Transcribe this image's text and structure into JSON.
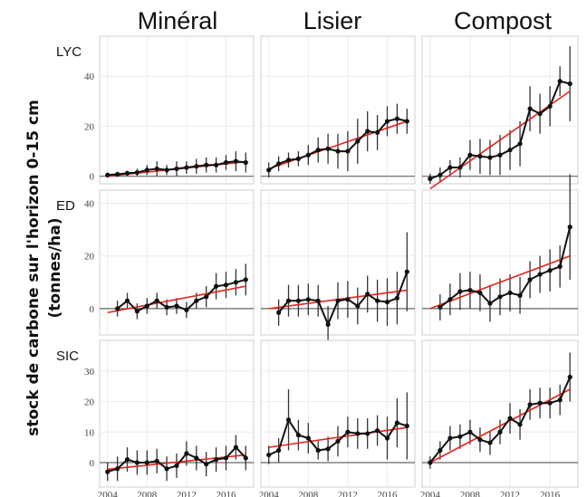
{
  "figure": {
    "column_titles": [
      "Minéral",
      "Lisier",
      "Compost"
    ],
    "y_axis_label_line1": "stock de carbone sur l'horizon 0-15 cm",
    "y_axis_label_line2": "(tonnes/ha)",
    "row_labels": [
      "LYC",
      "ED",
      "SIC"
    ]
  },
  "colors": {
    "series": "#111111",
    "trend": "#e8221b",
    "zero_line": "#666666",
    "panel_border": "#cfcfcf",
    "grid": "#ececec"
  },
  "chart_data": {
    "type": "line",
    "x_ticks": [
      2004,
      2008,
      2012,
      2016
    ],
    "xlim": [
      2003.2,
      2018.8
    ],
    "rows": [
      {
        "label": "LYC",
        "ylim": [
          -3,
          56
        ],
        "y_ticks": [
          0,
          20,
          40
        ],
        "panels": [
          {
            "column": "Minéral",
            "x": [
              2004,
              2005,
              2006,
              2007,
              2008,
              2009,
              2010,
              2011,
              2012,
              2013,
              2014,
              2015,
              2016,
              2017,
              2018
            ],
            "y": [
              0.5,
              0.8,
              1.2,
              1.5,
              2.5,
              3,
              2.5,
              3,
              3.5,
              4,
              4.5,
              4.5,
              5.5,
              6,
              5.5
            ],
            "err": [
              1,
              1,
              1,
              1.5,
              2,
              3,
              2,
              3,
              2.5,
              3,
              3,
              3,
              3,
              4,
              4
            ],
            "trend": [
              0,
              5.8
            ]
          },
          {
            "column": "Lisier",
            "x": [
              2004,
              2005,
              2006,
              2007,
              2008,
              2009,
              2010,
              2011,
              2012,
              2013,
              2014,
              2015,
              2016,
              2017,
              2018
            ],
            "y": [
              2.5,
              5,
              6.5,
              7,
              8.5,
              10.5,
              11,
              10,
              10,
              14,
              18,
              17.5,
              22,
              23,
              22
            ],
            "err": [
              3,
              3,
              3,
              3,
              4,
              5,
              6,
              7,
              8,
              9,
              8,
              7,
              6,
              6,
              5
            ],
            "trend": [
              3,
              22
            ]
          },
          {
            "column": "Compost",
            "x": [
              2004,
              2005,
              2006,
              2007,
              2008,
              2009,
              2010,
              2011,
              2012,
              2013,
              2014,
              2015,
              2016,
              2017,
              2018
            ],
            "y": [
              -1,
              0.5,
              3.5,
              3.5,
              8.5,
              8,
              7.5,
              8.5,
              10.5,
              13,
              27,
              25,
              28,
              38,
              37
            ],
            "err": [
              2,
              3,
              3,
              4,
              6,
              7,
              7,
              8,
              8,
              9,
              9,
              8,
              8,
              6,
              15
            ],
            "trend": [
              -5,
              34
            ]
          }
        ]
      },
      {
        "label": "ED",
        "ylim": [
          -10,
          45
        ],
        "y_ticks": [
          0,
          20,
          40
        ],
        "panels": [
          {
            "column": "Minéral",
            "x": [
              2005,
              2006,
              2007,
              2008,
              2009,
              2010,
              2011,
              2012,
              2013,
              2014,
              2015,
              2016,
              2017,
              2018
            ],
            "y": [
              0,
              3,
              -1,
              1,
              3,
              0.5,
              1,
              -0.5,
              3,
              4.5,
              8.5,
              9,
              10,
              11
            ],
            "err": [
              3,
              3,
              3,
              3,
              3,
              3,
              3,
              3,
              3,
              4,
              5,
              5,
              5,
              6
            ],
            "trend": [
              -1.5,
              8.5
            ]
          },
          {
            "column": "Lisier",
            "x": [
              2005,
              2006,
              2007,
              2008,
              2009,
              2010,
              2011,
              2012,
              2013,
              2014,
              2015,
              2016,
              2017,
              2018
            ],
            "y": [
              -1.5,
              3,
              3,
              3.5,
              3,
              -6,
              3,
              3.5,
              1,
              5.5,
              3,
              2.5,
              4,
              14
            ],
            "err": [
              5,
              6,
              6,
              6,
              6,
              7,
              7,
              7,
              7,
              7,
              8,
              9,
              10,
              15
            ],
            "trend": [
              0,
              7
            ]
          },
          {
            "column": "Compost",
            "x": [
              2005,
              2006,
              2007,
              2008,
              2009,
              2010,
              2011,
              2012,
              2013,
              2014,
              2015,
              2016,
              2017,
              2018
            ],
            "y": [
              0.5,
              3.5,
              6.5,
              7,
              6,
              2,
              4.5,
              6,
              5,
              11,
              13,
              14.5,
              16,
              31
            ],
            "err": [
              5,
              6,
              7,
              7,
              7,
              7,
              7,
              7,
              7,
              7,
              7,
              8,
              8,
              20
            ],
            "trend": [
              0,
              20
            ]
          }
        ]
      },
      {
        "label": "SIC",
        "ylim": [
          -8,
          40
        ],
        "y_ticks": [
          0,
          10,
          20,
          30
        ],
        "panels": [
          {
            "column": "Minéral",
            "x": [
              2004,
              2005,
              2006,
              2007,
              2008,
              2009,
              2010,
              2011,
              2012,
              2013,
              2014,
              2015,
              2016,
              2017,
              2018
            ],
            "y": [
              -3,
              -2,
              1,
              0,
              0,
              0.5,
              -2,
              -1,
              3,
              1.5,
              -0.5,
              1,
              1.5,
              5,
              1.5
            ],
            "err": [
              3,
              4,
              4,
              4,
              4,
              4,
              4,
              4,
              4,
              4,
              4,
              4,
              4,
              4,
              4
            ],
            "trend": [
              -2.2,
              2.5
            ]
          },
          {
            "column": "Lisier",
            "x": [
              2004,
              2005,
              2006,
              2007,
              2008,
              2009,
              2010,
              2011,
              2012,
              2013,
              2014,
              2015,
              2016,
              2017,
              2018
            ],
            "y": [
              2.5,
              4,
              14,
              9,
              8,
              4,
              4.5,
              7,
              10,
              9.5,
              9.5,
              10.5,
              8,
              13,
              12
            ],
            "err": [
              3,
              4,
              10,
              5,
              5,
              3,
              4,
              5,
              5,
              5,
              5,
              5,
              7,
              8,
              11
            ],
            "trend": [
              5,
              11.5
            ]
          },
          {
            "column": "Compost",
            "x": [
              2004,
              2005,
              2006,
              2007,
              2008,
              2009,
              2010,
              2011,
              2012,
              2013,
              2014,
              2015,
              2016,
              2017,
              2018
            ],
            "y": [
              0,
              4,
              8,
              8.5,
              10,
              7.5,
              6.5,
              10,
              14.5,
              12.5,
              19,
              19.5,
              19.5,
              20.5,
              28
            ],
            "err": [
              2,
              3,
              4,
              4,
              4,
              4,
              4,
              4,
              5,
              5,
              5,
              5,
              5,
              5,
              8
            ],
            "trend": [
              0,
              24
            ]
          }
        ]
      }
    ]
  }
}
